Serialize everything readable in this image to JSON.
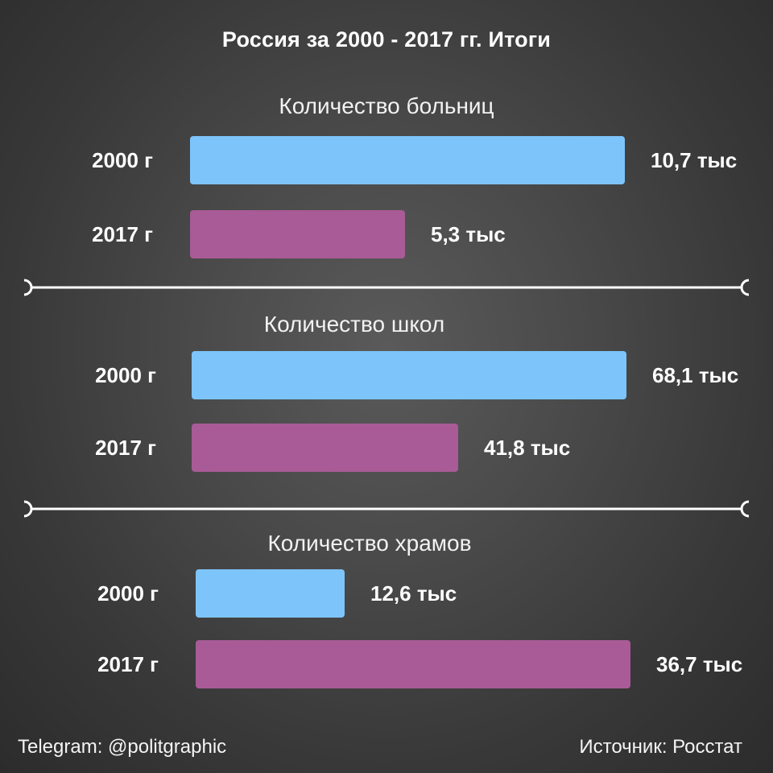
{
  "title": "Россия за 2000 - 2017 гг. Итоги",
  "footer": {
    "telegram": "Telegram: @politgraphic",
    "source": "Источник: Росстат"
  },
  "colors": {
    "bar_2000": "#7dc4fb",
    "bar_2017": "#a85b96",
    "text": "#ffffff"
  },
  "chart_data": [
    {
      "type": "bar",
      "orientation": "horizontal",
      "title": "Количество больниц",
      "categories": [
        "2000 г",
        "2017 г"
      ],
      "values": [
        10.7,
        5.3
      ],
      "value_labels": [
        "10,7 тыс",
        "5,3 тыс"
      ],
      "unit": "тыс"
    },
    {
      "type": "bar",
      "orientation": "horizontal",
      "title": "Количество школ",
      "categories": [
        "2000 г",
        "2017 г"
      ],
      "values": [
        68.1,
        41.8
      ],
      "value_labels": [
        "68,1 тыс",
        "41,8 тыс"
      ],
      "unit": "тыс"
    },
    {
      "type": "bar",
      "orientation": "horizontal",
      "title": "Количество храмов",
      "categories": [
        "2000 г",
        "2017 г"
      ],
      "values": [
        12.6,
        36.7
      ],
      "value_labels": [
        "12,6 тыс",
        "36,7 тыс"
      ],
      "unit": "тыс"
    }
  ]
}
